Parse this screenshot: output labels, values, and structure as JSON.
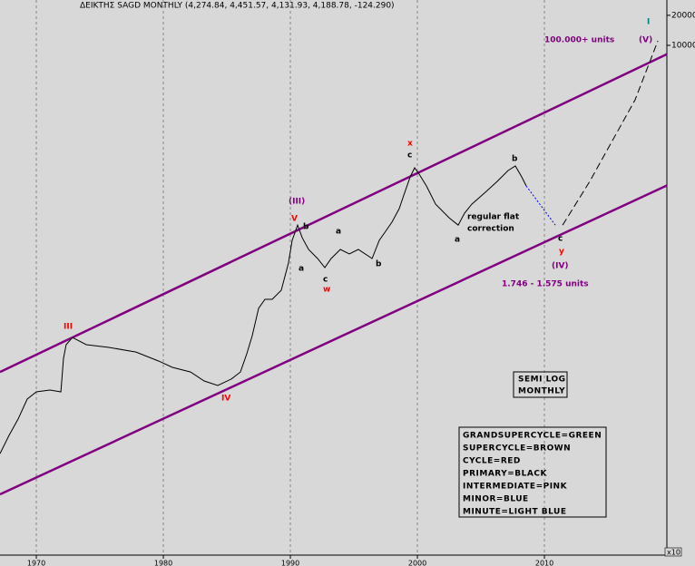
{
  "chart_data": {
    "type": "line",
    "title": "ΔΕΙΚΤΗΣ SAGD MONTHLY (4,274.84, 4,451.57, 4,131.93, 4,188.78, -124.290)",
    "log_y": true,
    "grid_x": true,
    "xlim": [
      1967.14,
      2019.64
    ],
    "ylim": [
      0.0778,
      28480
    ],
    "xticks": [
      1970,
      1980,
      1990,
      2000,
      2010
    ],
    "yticks": [
      10000,
      20000
    ],
    "axis_multiplier": "x10",
    "series": [
      {
        "color": "#000000",
        "style": "solid",
        "x": [
          1967.14,
          1967.85,
          1968.57,
          1969.28,
          1970,
          1971.07,
          1971.93,
          1972.14,
          1972.35,
          1972.85,
          1973.93,
          1975.71,
          1977.85,
          1979.64,
          1980.71,
          1982.14,
          1983.21,
          1984.28,
          1985.35,
          1986.07,
          1986.57,
          1987,
          1987.5,
          1988,
          1988.57,
          1989.28,
          1989.85,
          1990.14,
          1990.57,
          1990.93,
          1991.43,
          1992.14,
          1992.71,
          1993.21,
          1993.93,
          1994.64,
          1995.35,
          1996.43,
          1997,
          1997.5,
          1998,
          1998.57,
          1998.93,
          1999.43,
          1999.78,
          2000.14,
          2000.71,
          2001.43,
          2002.5,
          2003.21,
          2003.71,
          2004.28,
          2005.35,
          2006.28,
          2007.14,
          2007.71,
          2008.21,
          2008.57
        ],
        "values": [
          0.81,
          1.23,
          1.8,
          2.85,
          3.37,
          3.51,
          3.37,
          7.31,
          10,
          11.8,
          10,
          9.4,
          8.45,
          6.85,
          5.93,
          5.33,
          4.33,
          3.9,
          4.52,
          5.33,
          8.11,
          12.3,
          23.1,
          28.5,
          28.5,
          35.1,
          65.8,
          111,
          158,
          118,
          90.1,
          73.1,
          59.3,
          73.1,
          90.1,
          81.1,
          90.1,
          73.1,
          111,
          137,
          169,
          231,
          316,
          481,
          593,
          512,
          390,
          256,
          187,
          158,
          208,
          256,
          337,
          433,
          556,
          618,
          481,
          390
        ]
      },
      {
        "color": "#0000ff",
        "style": "dotted",
        "x": [
          2008.57,
          2010.86
        ],
        "values": [
          390,
          158
        ]
      },
      {
        "color": "#000000",
        "style": "dashed",
        "x": [
          2011.43,
          2013.57,
          2017.14,
          2018.93
        ],
        "values": [
          158,
          433,
          2850,
          11100
        ]
      }
    ],
    "channels": [
      {
        "color": "#800080",
        "x": [
          1967.14,
          2019.64
        ],
        "values": [
          5.33,
          8150
        ]
      },
      {
        "color": "#800080",
        "x": [
          1967.14,
          2019.64
        ],
        "values": [
          0.316,
          394
        ]
      }
    ],
    "annotations": [
      {
        "text": "I",
        "color": "#008080"
      },
      {
        "text": "(V)",
        "color": "#800080"
      },
      {
        "text": "100.000+ units",
        "color": "#800080"
      },
      {
        "text": "x",
        "color": "#ff0000"
      },
      {
        "text": "c",
        "color": "#000000"
      },
      {
        "text": "b",
        "color": "#000000"
      },
      {
        "text": "(III)",
        "color": "#800080"
      },
      {
        "text": "V",
        "color": "#ff0000"
      },
      {
        "text": "b",
        "color": "#000000"
      },
      {
        "text": "a",
        "color": "#000000"
      },
      {
        "text": "a",
        "color": "#000000"
      },
      {
        "text": "b",
        "color": "#000000"
      },
      {
        "text": "c",
        "color": "#000000"
      },
      {
        "text": "w",
        "color": "#ff0000"
      },
      {
        "text": "regular flat",
        "color": "#000000"
      },
      {
        "text": "correction",
        "color": "#000000"
      },
      {
        "text": "a",
        "color": "#000000"
      },
      {
        "text": "c",
        "color": "#000000"
      },
      {
        "text": "y",
        "color": "#ff0000"
      },
      {
        "text": "(IV)",
        "color": "#800080"
      },
      {
        "text": "1.746 - 1.575 units",
        "color": "#800080"
      },
      {
        "text": "III",
        "color": "#ff0000"
      },
      {
        "text": "IV",
        "color": "#ff0000"
      }
    ],
    "scale_box": [
      "SEMI LOG",
      "MONTHLY"
    ],
    "color_key": [
      "GRANDSUPERCYCLE=GREEN",
      "SUPERCYCLE=BROWN",
      "CYCLE=RED",
      "PRIMARY=BLACK",
      "INTERMEDIATE=PINK",
      "MINOR=BLUE",
      "MINUTE=LIGHT BLUE"
    ]
  }
}
